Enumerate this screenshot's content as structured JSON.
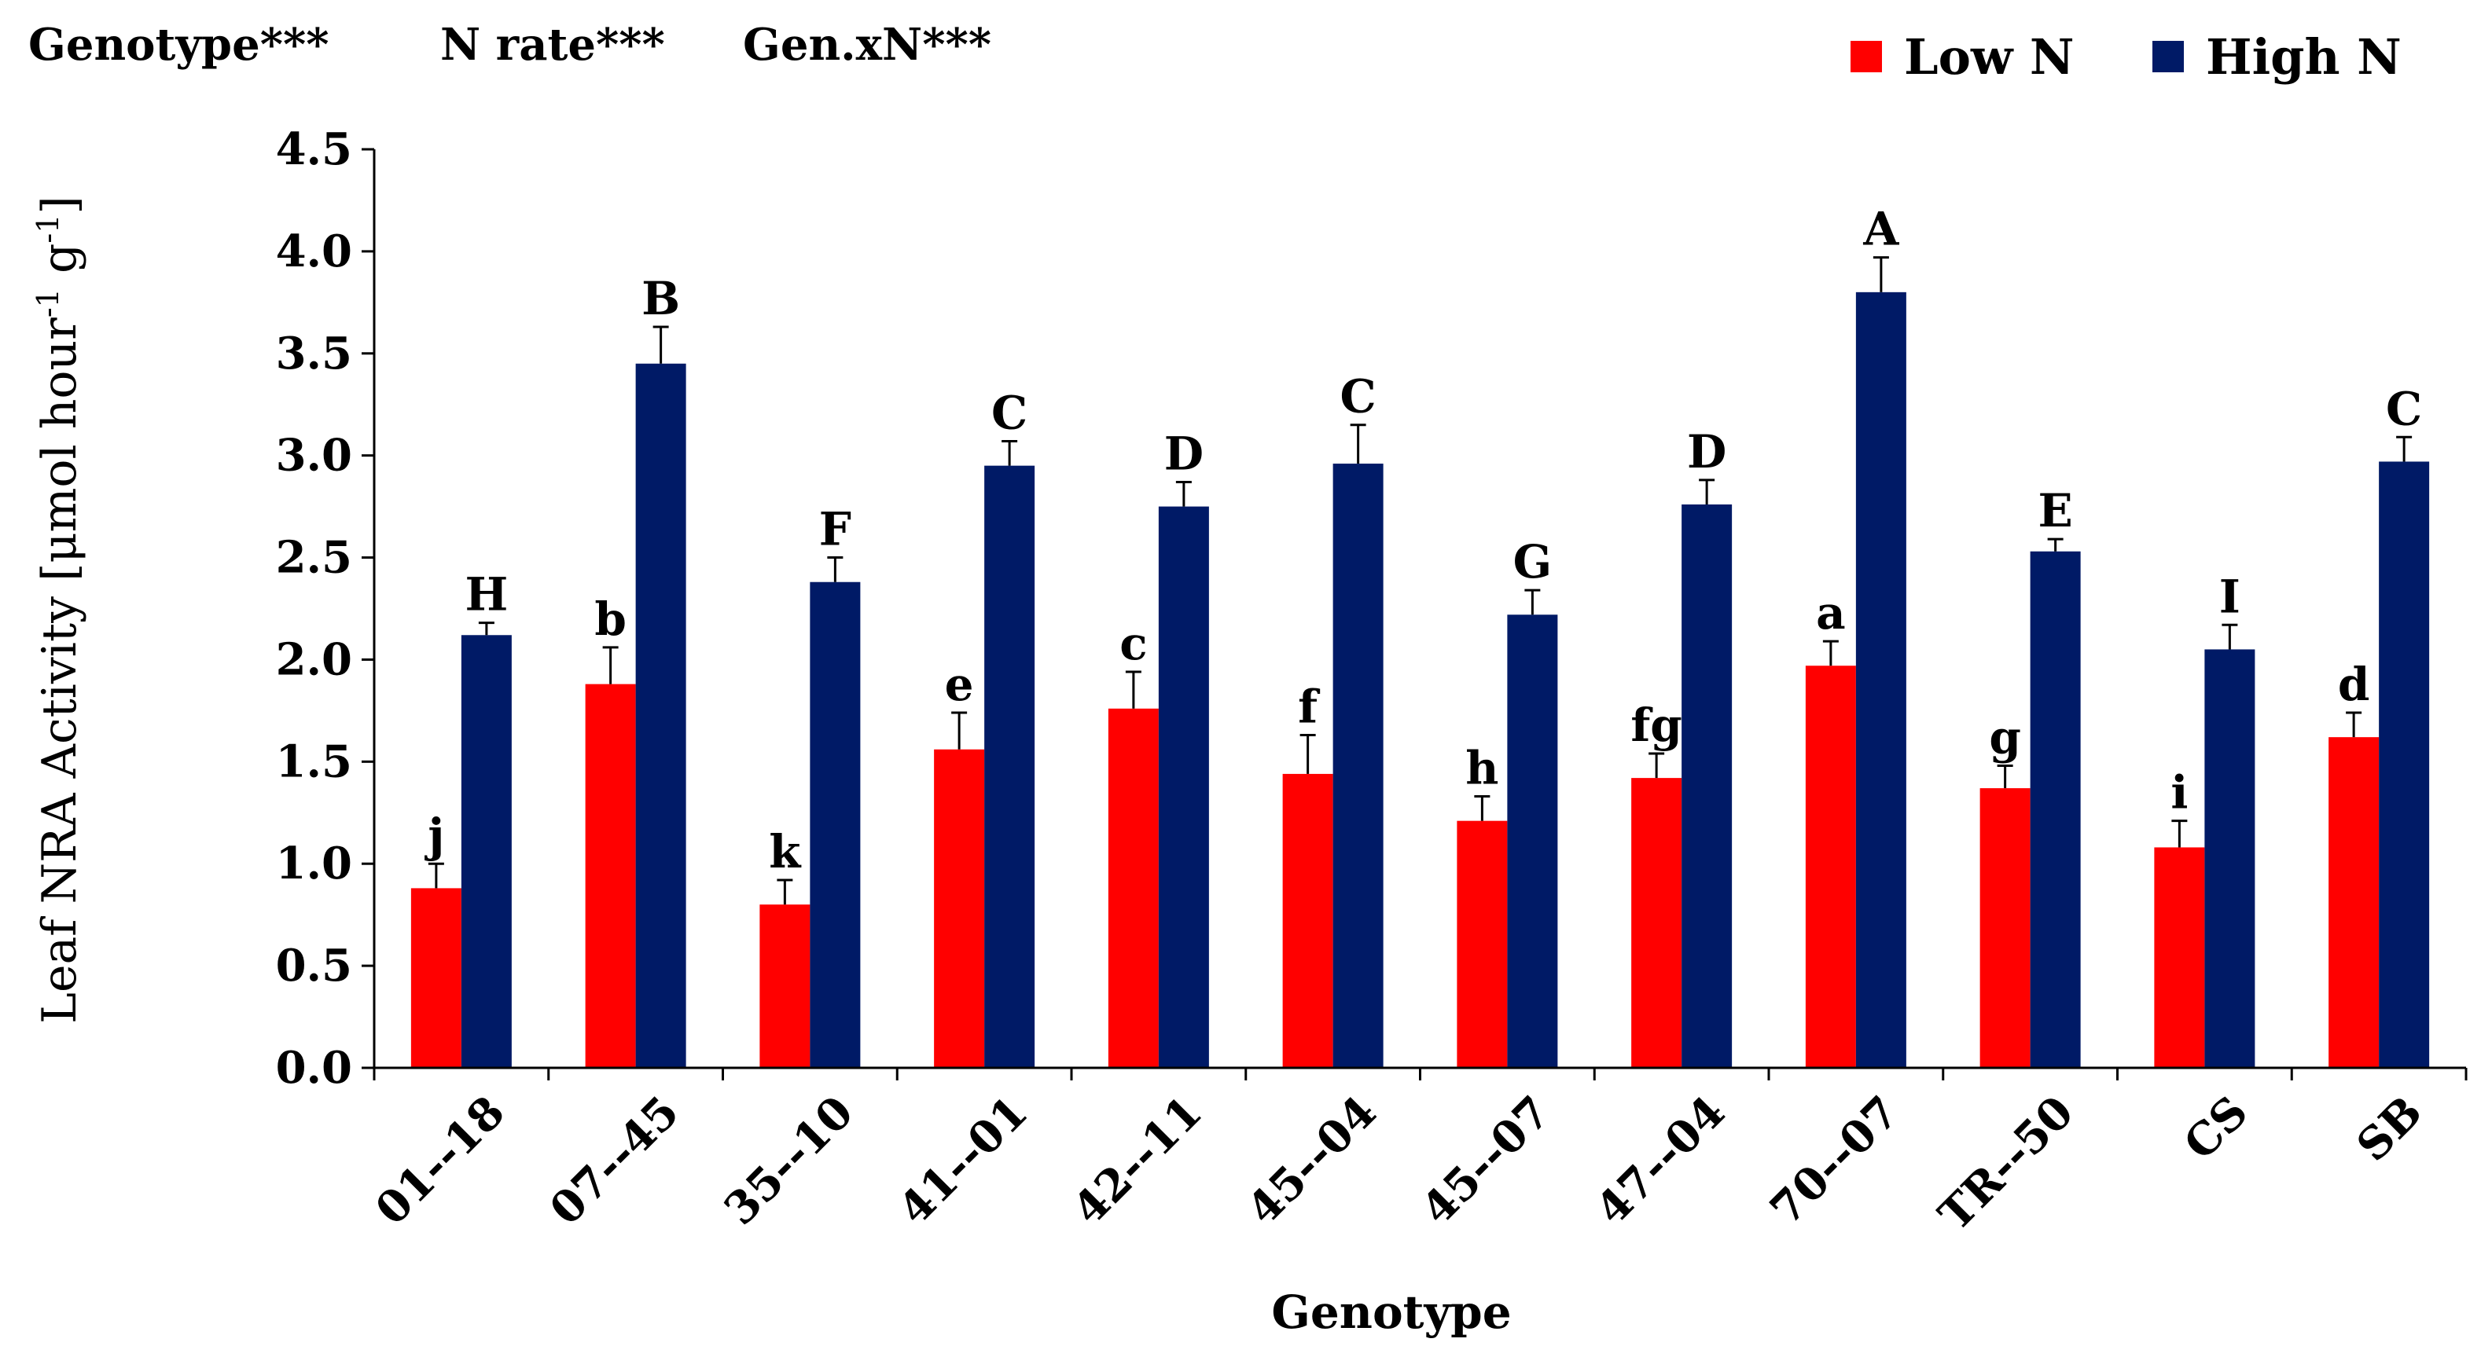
{
  "chart_data": {
    "type": "bar",
    "stats_header": [
      "Genotype***",
      "N rate***",
      "Gen.xN***"
    ],
    "xlabel": "Genotype",
    "ylabel": {
      "prefix": "Leaf NRA Activity [μmol hour",
      "sup1": "-1",
      "mid": " g",
      "sup2": "-1",
      "suffix": "]"
    },
    "ylim": [
      0,
      4.5
    ],
    "yticks": [
      "0.0",
      "0.5",
      "1.0",
      "1.5",
      "2.0",
      "2.5",
      "3.0",
      "3.5",
      "4.0",
      "4.5"
    ],
    "categories": [
      "01--18",
      "07--45",
      "35--10",
      "41--01",
      "42--11",
      "45--04",
      "45--07",
      "47--04",
      "70--07",
      "TR--50",
      "CS",
      "SB"
    ],
    "series": [
      {
        "name": "Low N",
        "color": "#ff0000",
        "values": [
          0.88,
          1.88,
          0.8,
          1.56,
          1.76,
          1.44,
          1.21,
          1.42,
          1.97,
          1.37,
          1.08,
          1.62
        ],
        "errors": [
          0.12,
          0.18,
          0.12,
          0.18,
          0.18,
          0.19,
          0.12,
          0.12,
          0.12,
          0.11,
          0.13,
          0.12
        ],
        "letters": [
          "j",
          "b",
          "k",
          "e",
          "c",
          "f",
          "h",
          "fg",
          "a",
          "g",
          "i",
          "d"
        ]
      },
      {
        "name": "High N",
        "color": "#001a66",
        "values": [
          2.12,
          3.45,
          2.38,
          2.95,
          2.75,
          2.96,
          2.22,
          2.76,
          3.8,
          2.53,
          2.05,
          2.97
        ],
        "errors": [
          0.06,
          0.18,
          0.12,
          0.12,
          0.12,
          0.19,
          0.12,
          0.12,
          0.17,
          0.06,
          0.12,
          0.12
        ],
        "letters": [
          "H",
          "B",
          "F",
          "C",
          "D",
          "C",
          "G",
          "D",
          "A",
          "E",
          "I",
          "C"
        ]
      }
    ],
    "legend_position": "top-right"
  }
}
